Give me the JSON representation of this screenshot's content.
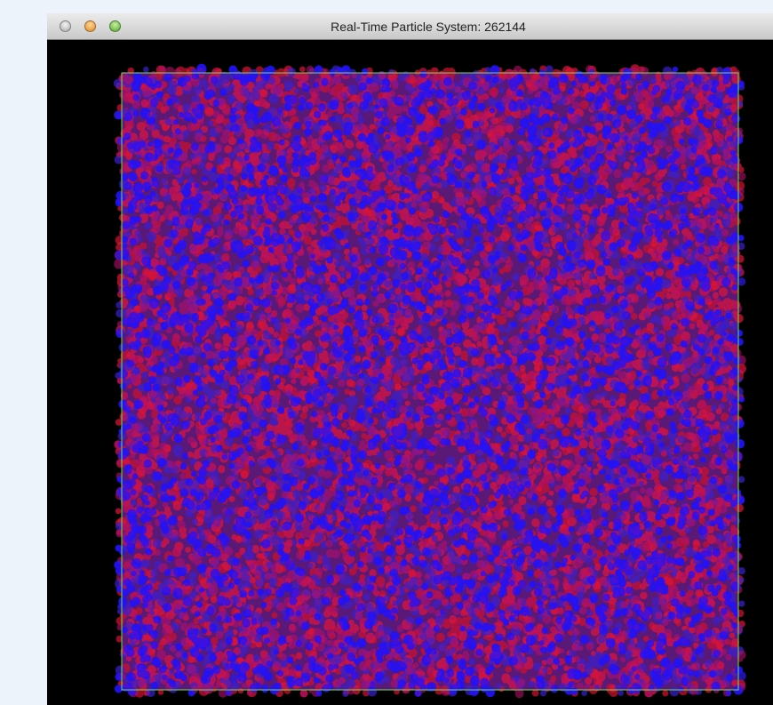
{
  "window": {
    "title": "Real-Time Particle System: 262144"
  }
}
